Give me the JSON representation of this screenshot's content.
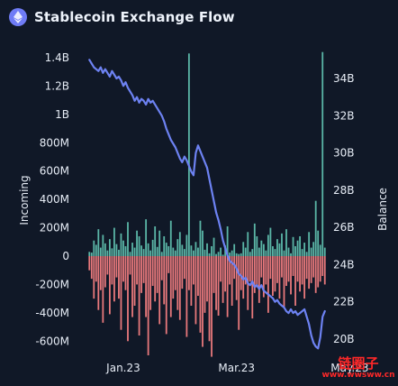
{
  "header": {
    "title": "Stablecoin Exchange Flow",
    "logo_icon": "ethereum-icon"
  },
  "colors": {
    "background": "#101827",
    "inflow_bar": "#5ab5a6",
    "outflow_bar": "#e7787b",
    "balance_line": "#6d82f2",
    "axis_text": "#e7edf6"
  },
  "watermark": {
    "top": "链圈子",
    "bottom": "www.wwsww.cn"
  },
  "chart_data": {
    "type": "bar",
    "title": "Stablecoin Exchange Flow",
    "y_left_label": "Incoming",
    "y_right_label": "Balance",
    "y_left_ticks": [
      "1.4B",
      "1.2B",
      "1B",
      "800M",
      "600M",
      "400M",
      "200M",
      "0",
      "-200M",
      "-400M",
      "-600M"
    ],
    "y_left_tick_values": [
      1400,
      1200,
      1000,
      800,
      600,
      400,
      200,
      0,
      -200,
      -400,
      -600
    ],
    "y_left_unit": "M",
    "ylim_left": [
      -700,
      1450
    ],
    "y_right_ticks": [
      "34B",
      "32B",
      "30B",
      "28B",
      "26B",
      "24B",
      "22B",
      "20B"
    ],
    "y_right_tick_values": [
      34,
      32,
      30,
      28,
      26,
      24,
      22,
      20
    ],
    "y_right_unit": "B",
    "ylim_right": [
      19.3,
      35.8
    ],
    "x_ticks": [
      "Jan.23",
      "Mar.23",
      "May.23"
    ],
    "x_tick_indices": [
      15,
      65,
      115
    ],
    "inflow": [
      30,
      25,
      110,
      80,
      190,
      60,
      150,
      90,
      40,
      120,
      55,
      200,
      85,
      45,
      160,
      110,
      70,
      240,
      30,
      95,
      60,
      180,
      140,
      75,
      50,
      260,
      90,
      40,
      115,
      210,
      65,
      180,
      30,
      140,
      95,
      70,
      250,
      60,
      40,
      120,
      170,
      80,
      50,
      150,
      1430,
      75,
      40,
      100,
      60,
      250,
      180,
      45,
      90,
      20,
      70,
      130,
      15,
      30,
      60,
      10,
      75,
      210,
      25,
      40,
      85,
      20,
      15,
      20,
      100,
      60,
      170,
      30,
      50,
      230,
      140,
      60,
      110,
      85,
      40,
      150,
      200,
      70,
      50,
      120,
      90,
      160,
      40,
      190,
      60,
      20,
      135,
      70,
      110,
      140,
      50,
      95,
      30,
      170,
      60,
      100,
      390,
      180,
      80,
      1440,
      60
    ],
    "outflow": [
      -100,
      -160,
      -300,
      -180,
      -380,
      -240,
      -470,
      -220,
      -130,
      -410,
      -200,
      -320,
      -150,
      -300,
      -520,
      -180,
      -240,
      -600,
      -130,
      -430,
      -350,
      -200,
      -560,
      -260,
      -190,
      -430,
      -700,
      -380,
      -210,
      -320,
      -260,
      -480,
      -170,
      -340,
      -550,
      -120,
      -430,
      -300,
      -240,
      -380,
      -450,
      -230,
      -160,
      -570,
      -240,
      -350,
      -200,
      -480,
      -280,
      -540,
      -640,
      -400,
      -320,
      -600,
      -710,
      -260,
      -380,
      -420,
      -180,
      -330,
      -250,
      -430,
      -200,
      -350,
      -160,
      -310,
      -520,
      -240,
      -300,
      -200,
      -380,
      -180,
      -440,
      -260,
      -220,
      -330,
      -150,
      -290,
      -200,
      -400,
      -160,
      -280,
      -250,
      -190,
      -300,
      -150,
      -360,
      -210,
      -180,
      -270,
      -140,
      -350,
      -180,
      -250,
      -200,
      -300,
      -160,
      -230,
      -190,
      -150,
      -260,
      -220,
      -180,
      -140,
      -200
    ],
    "balance": [
      35.0,
      34.8,
      34.6,
      34.5,
      34.4,
      34.6,
      34.3,
      34.5,
      34.3,
      34.1,
      34.4,
      34.2,
      34.0,
      34.1,
      33.9,
      33.6,
      33.8,
      33.5,
      33.3,
      33.1,
      32.8,
      33.0,
      32.7,
      32.9,
      32.8,
      32.6,
      32.9,
      32.7,
      32.8,
      32.6,
      32.4,
      32.2,
      32.0,
      31.7,
      31.3,
      31.0,
      30.7,
      30.5,
      30.3,
      30.0,
      29.7,
      29.5,
      29.8,
      29.6,
      29.3,
      29.0,
      28.8,
      30.0,
      30.4,
      30.1,
      29.8,
      29.5,
      29.2,
      28.6,
      28.0,
      27.4,
      26.8,
      26.4,
      25.9,
      25.3,
      24.9,
      24.5,
      24.2,
      24.1,
      24.0,
      23.8,
      23.5,
      23.4,
      23.2,
      23.3,
      23.0,
      22.9,
      23.1,
      22.8,
      22.9,
      22.7,
      22.9,
      22.6,
      22.5,
      22.4,
      22.3,
      22.2,
      22.0,
      22.1,
      21.9,
      21.8,
      21.7,
      21.5,
      21.4,
      21.6,
      21.4,
      21.5,
      21.3,
      21.4,
      21.5,
      21.6,
      21.2,
      20.8,
      20.2,
      19.8,
      19.6,
      19.5,
      20.1,
      21.2,
      21.5
    ]
  }
}
